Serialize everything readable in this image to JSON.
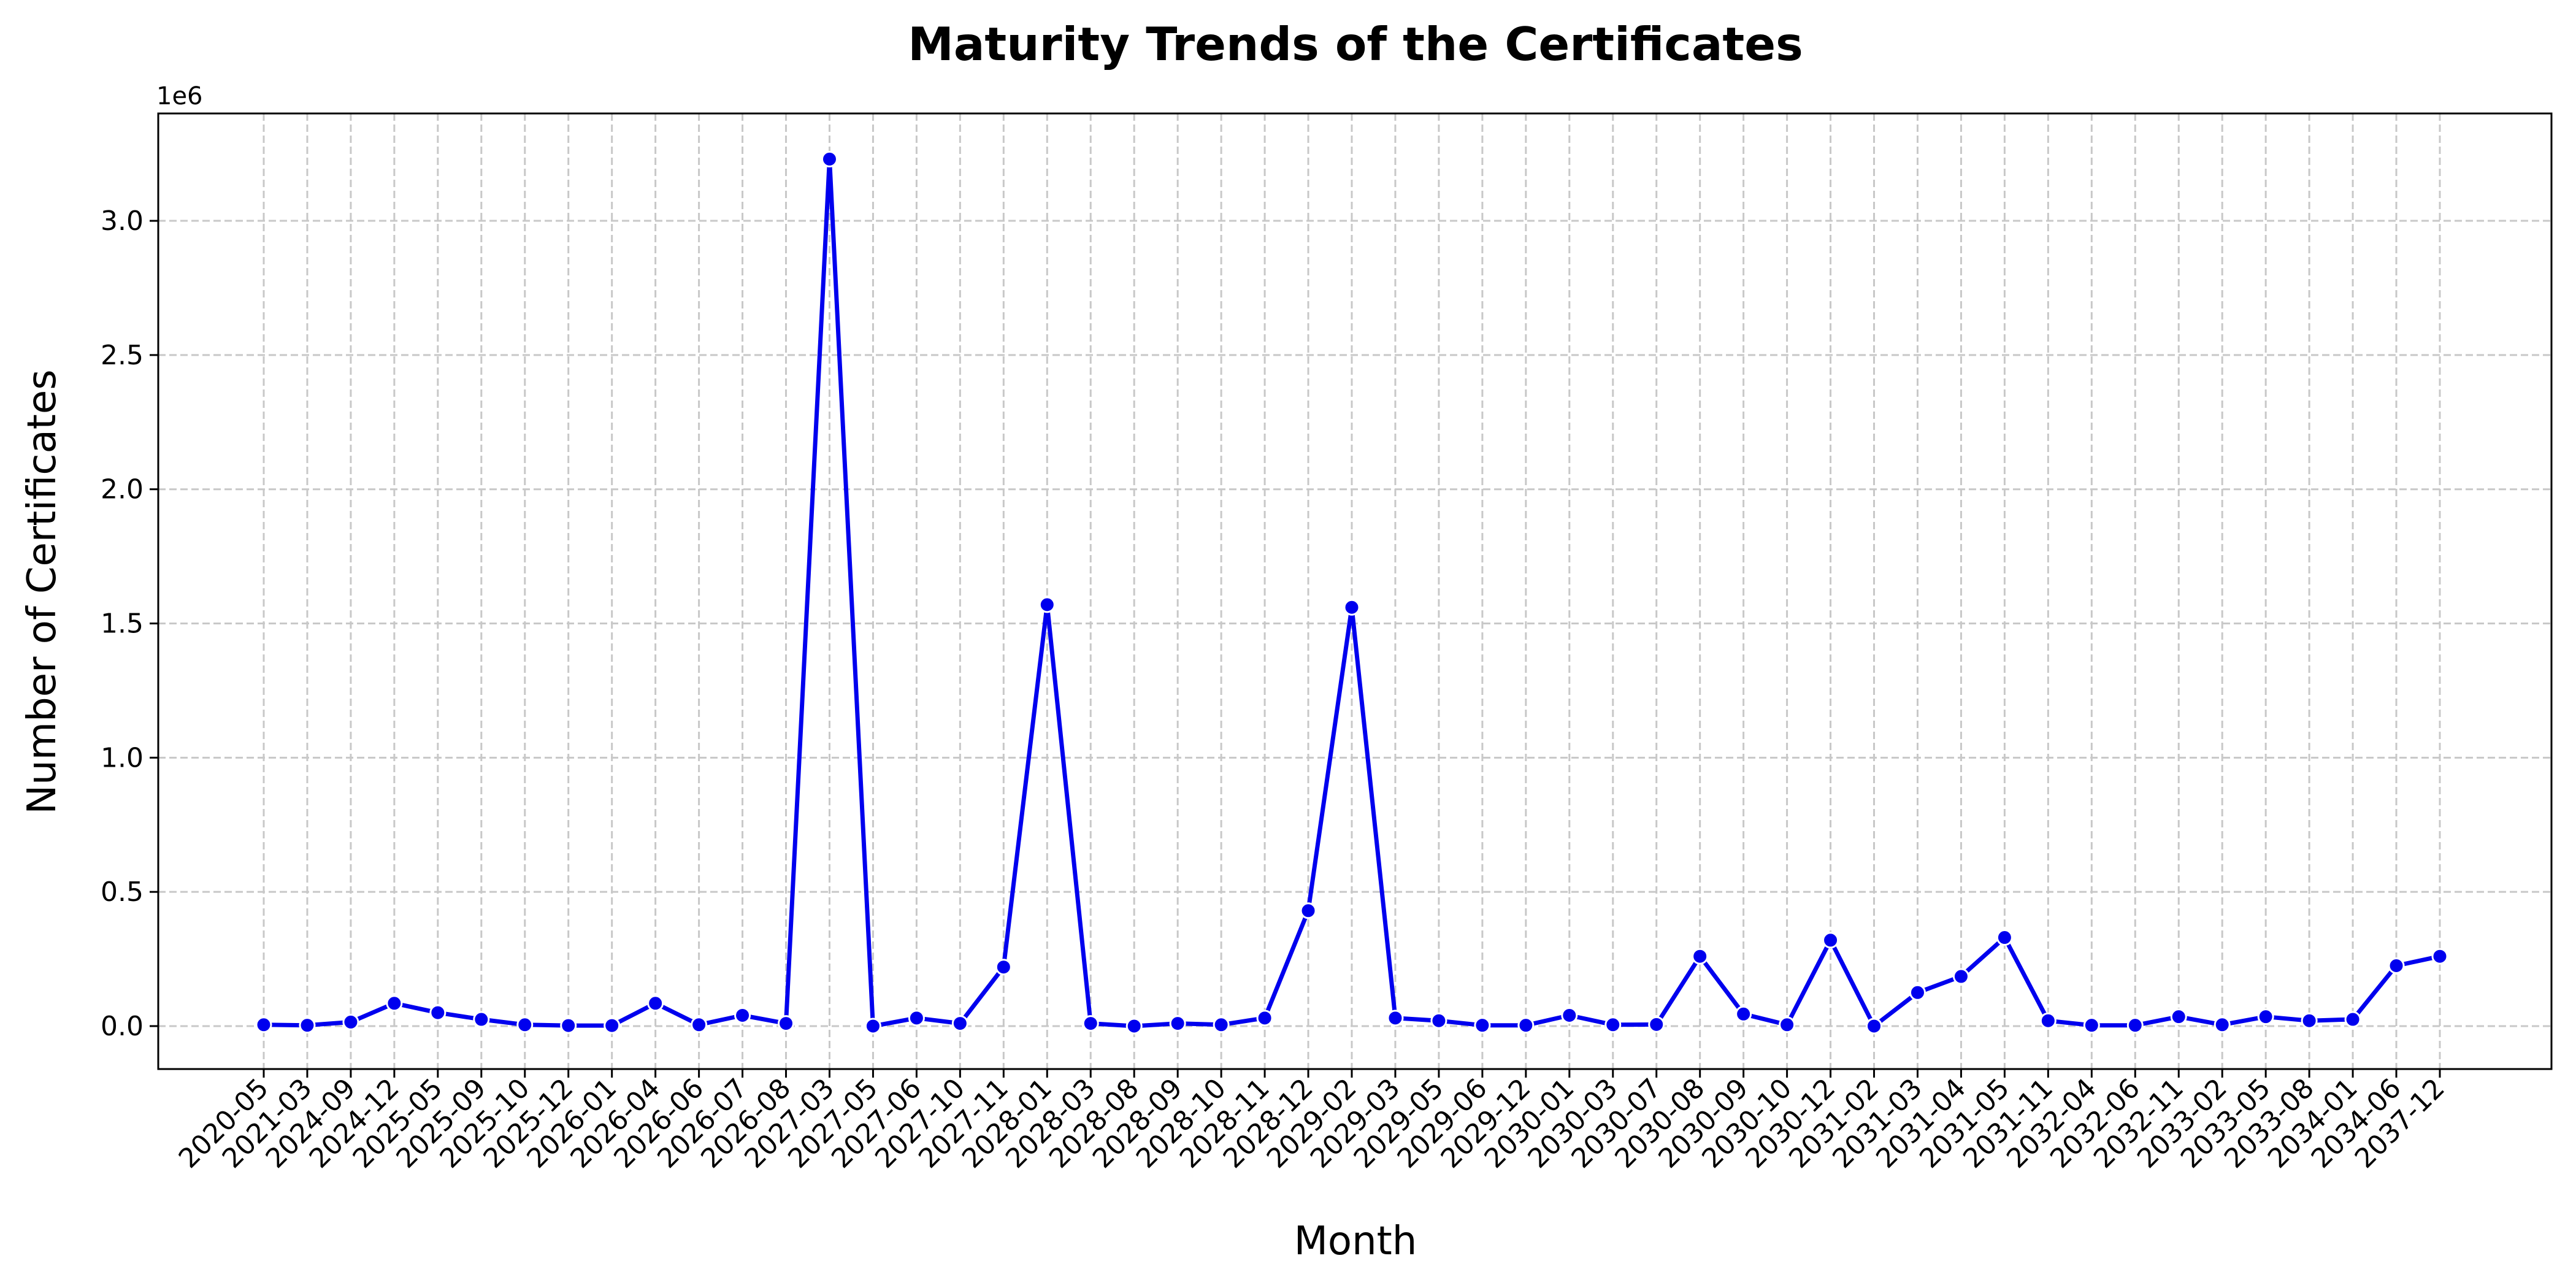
{
  "chart_data": {
    "type": "line",
    "title": "Maturity Trends of the Certificates",
    "xlabel": "Month",
    "ylabel": "Number of Certificates",
    "y_offset_label": "1e6",
    "ylim": [
      -0.16,
      3.4
    ],
    "yticks": [
      0.0,
      0.5,
      1.0,
      1.5,
      2.0,
      2.5,
      3.0
    ],
    "ytick_labels": [
      "0.0",
      "0.5",
      "1.0",
      "1.5",
      "2.0",
      "2.5",
      "3.0"
    ],
    "grid": true,
    "series_color": "#0000ee",
    "categories": [
      "2020-05",
      "2021-03",
      "2024-09",
      "2024-12",
      "2025-05",
      "2025-09",
      "2025-10",
      "2025-12",
      "2026-01",
      "2026-04",
      "2026-06",
      "2026-07",
      "2026-08",
      "2027-03",
      "2027-05",
      "2027-06",
      "2027-10",
      "2027-11",
      "2028-01",
      "2028-03",
      "2028-08",
      "2028-09",
      "2028-10",
      "2028-11",
      "2028-12",
      "2029-02",
      "2029-03",
      "2029-05",
      "2029-06",
      "2029-12",
      "2030-01",
      "2030-03",
      "2030-07",
      "2030-08",
      "2030-09",
      "2030-10",
      "2030-12",
      "2031-02",
      "2031-03",
      "2031-04",
      "2031-05",
      "2031-11",
      "2032-04",
      "2032-06",
      "2032-11",
      "2033-02",
      "2033-05",
      "2033-08",
      "2034-01",
      "2034-06",
      "2037-12"
    ],
    "values": [
      0.005,
      0.003,
      0.015,
      0.085,
      0.05,
      0.025,
      0.005,
      0.002,
      0.002,
      0.085,
      0.005,
      0.04,
      0.01,
      3.23,
      0.0,
      0.03,
      0.01,
      0.22,
      1.57,
      0.01,
      0.0,
      0.01,
      0.005,
      0.03,
      0.43,
      1.56,
      0.03,
      0.02,
      0.003,
      0.003,
      0.04,
      0.005,
      0.006,
      0.26,
      0.045,
      0.005,
      0.32,
      0.0,
      0.125,
      0.185,
      0.33,
      0.02,
      0.003,
      0.003,
      0.035,
      0.005,
      0.035,
      0.02,
      0.025,
      0.225,
      0.26
    ]
  }
}
